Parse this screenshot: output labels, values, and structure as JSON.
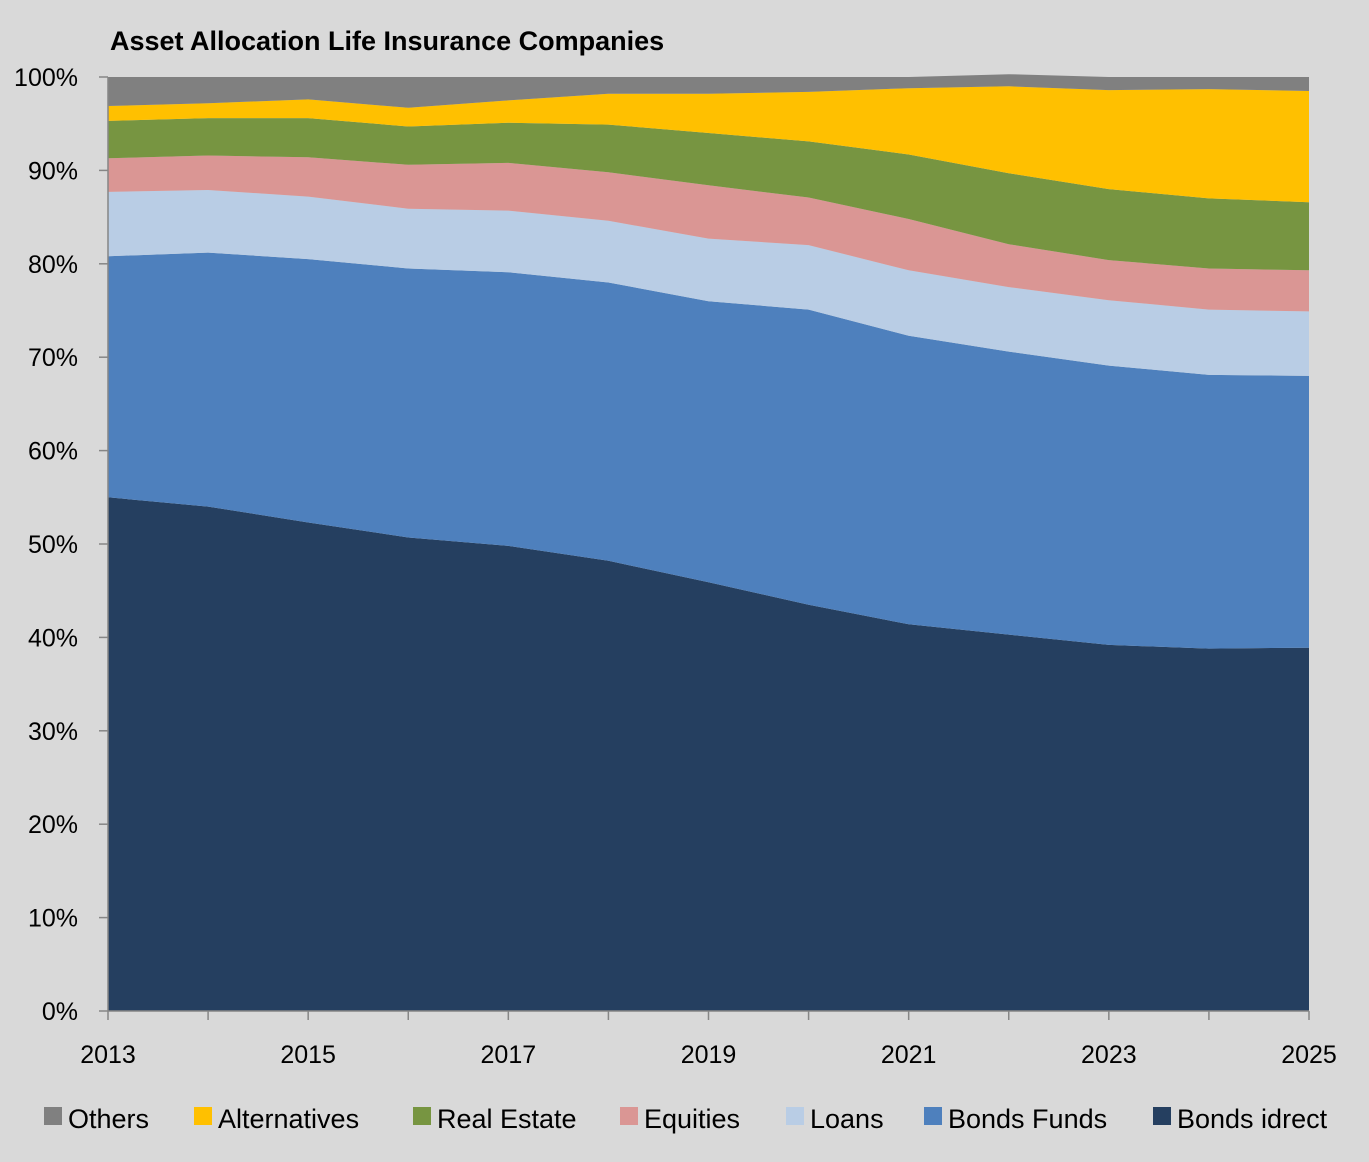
{
  "chart_data": {
    "type": "area",
    "stacked": true,
    "percent": true,
    "title": "Asset Allocation Life Insurance Companies",
    "xlabel": "",
    "ylabel": "",
    "ylim": [
      0,
      100
    ],
    "xlim": [
      2013,
      2025
    ],
    "y_tick_labels": [
      "0%",
      "10%",
      "20%",
      "30%",
      "40%",
      "50%",
      "60%",
      "70%",
      "80%",
      "90%",
      "100%"
    ],
    "y_tick_values": [
      0,
      10,
      20,
      30,
      40,
      50,
      60,
      70,
      80,
      90,
      100
    ],
    "x_tick_labels": [
      "2013",
      "2015",
      "2017",
      "2019",
      "2021",
      "2023",
      "2025"
    ],
    "x_tick_values": [
      2013,
      2015,
      2017,
      2019,
      2021,
      2023,
      2025
    ],
    "x": [
      2013,
      2014,
      2015,
      2016,
      2017,
      2018,
      2019,
      2020,
      2021,
      2022,
      2023,
      2024,
      2025
    ],
    "grid": false,
    "legend_position": "bottom",
    "series": [
      {
        "name": "Bonds idrect",
        "color": "#253f60",
        "values": [
          55.0,
          54.0,
          52.3,
          50.7,
          49.8,
          48.2,
          45.9,
          43.5,
          41.4,
          40.3,
          39.2,
          38.8,
          38.9
        ]
      },
      {
        "name": "Bonds Funds",
        "color": "#4e80bd",
        "values": [
          25.8,
          27.2,
          28.2,
          28.8,
          29.3,
          29.8,
          30.1,
          31.6,
          30.9,
          30.3,
          29.9,
          29.3,
          29.1
        ]
      },
      {
        "name": "Loans",
        "color": "#b9cde5",
        "values": [
          6.9,
          6.7,
          6.7,
          6.4,
          6.6,
          6.6,
          6.7,
          6.9,
          7.0,
          6.9,
          7.0,
          7.0,
          6.9
        ]
      },
      {
        "name": "Equities",
        "color": "#da9694",
        "values": [
          3.6,
          3.7,
          4.2,
          4.7,
          5.1,
          5.2,
          5.7,
          5.1,
          5.5,
          4.6,
          4.3,
          4.4,
          4.4
        ]
      },
      {
        "name": "Real Estate",
        "color": "#779541",
        "values": [
          4.0,
          4.0,
          4.2,
          4.1,
          4.3,
          5.1,
          5.6,
          6.0,
          6.9,
          7.6,
          7.6,
          7.5,
          7.3
        ]
      },
      {
        "name": "Alternatives",
        "color": "#ffc000",
        "values": [
          1.6,
          1.6,
          2.0,
          2.0,
          2.4,
          3.3,
          4.2,
          5.3,
          7.1,
          9.3,
          10.6,
          11.7,
          11.9
        ]
      },
      {
        "name": "Others",
        "color": "#808080",
        "values": [
          3.1,
          2.8,
          2.4,
          3.3,
          2.5,
          1.8,
          1.8,
          1.6,
          1.2,
          1.3,
          1.4,
          1.3,
          1.5
        ]
      }
    ],
    "legend_order": [
      "Others",
      "Alternatives",
      "Real Estate",
      "Equities",
      "Loans",
      "Bonds Funds",
      "Bonds idrect"
    ]
  }
}
